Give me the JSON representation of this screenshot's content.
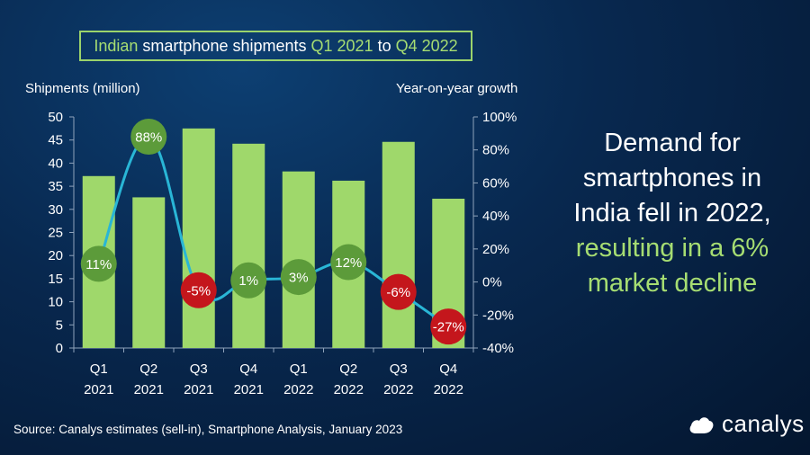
{
  "title": {
    "parts": [
      {
        "text": "Indian",
        "color": "#a6dd72"
      },
      {
        "text": " smartphone shipments ",
        "color": "#ffffff"
      },
      {
        "text": "Q1 2021",
        "color": "#a6dd72"
      },
      {
        "text": " to ",
        "color": "#ffffff"
      },
      {
        "text": "Q4 2022",
        "color": "#a6dd72"
      }
    ]
  },
  "headline": {
    "white": [
      "Demand for",
      "smartphones in",
      "India fell in 2022,"
    ],
    "green": [
      "resulting in a 6%",
      "market decline"
    ]
  },
  "source": "Source: Canalys estimates (sell-in), Smartphone Analysis, January 2023",
  "logo": {
    "text": "canalys",
    "icon": "canalys-logo-icon"
  },
  "chart_data": {
    "type": "bar",
    "categories": [
      [
        "Q1",
        "2021"
      ],
      [
        "Q2",
        "2021"
      ],
      [
        "Q3",
        "2021"
      ],
      [
        "Q4",
        "2021"
      ],
      [
        "Q1",
        "2022"
      ],
      [
        "Q2",
        "2022"
      ],
      [
        "Q3",
        "2022"
      ],
      [
        "Q4",
        "2022"
      ]
    ],
    "ylabel": "Shipments (million)",
    "ylabel_right": "Year-on-year growth",
    "ylim": [
      0,
      50
    ],
    "yticks": [
      0,
      5,
      10,
      15,
      20,
      25,
      30,
      35,
      40,
      45,
      50
    ],
    "ylim_right": [
      -40,
      100
    ],
    "yticks_right": [
      "-40%",
      "-20%",
      "0%",
      "20%",
      "40%",
      "60%",
      "80%",
      "100%"
    ],
    "yticks_right_values": [
      -40,
      -20,
      0,
      20,
      40,
      60,
      80,
      100
    ],
    "series": [
      {
        "type": "bar",
        "values": [
          37.2,
          32.6,
          47.5,
          44.2,
          38.2,
          36.2,
          44.6,
          32.3
        ],
        "color": "#9fd86b"
      },
      {
        "type": "line",
        "axis": "right",
        "values": [
          11,
          88,
          -5,
          1,
          3,
          12,
          -6,
          -27
        ],
        "labels": [
          "11%",
          "88%",
          "-5%",
          "1%",
          "3%",
          "12%",
          "-6%",
          "-27%"
        ],
        "line_color": "#29b6d6",
        "positive_color": "#5c9b3a",
        "negative_color": "#c4161c"
      }
    ],
    "grid": false,
    "legend": "none"
  }
}
